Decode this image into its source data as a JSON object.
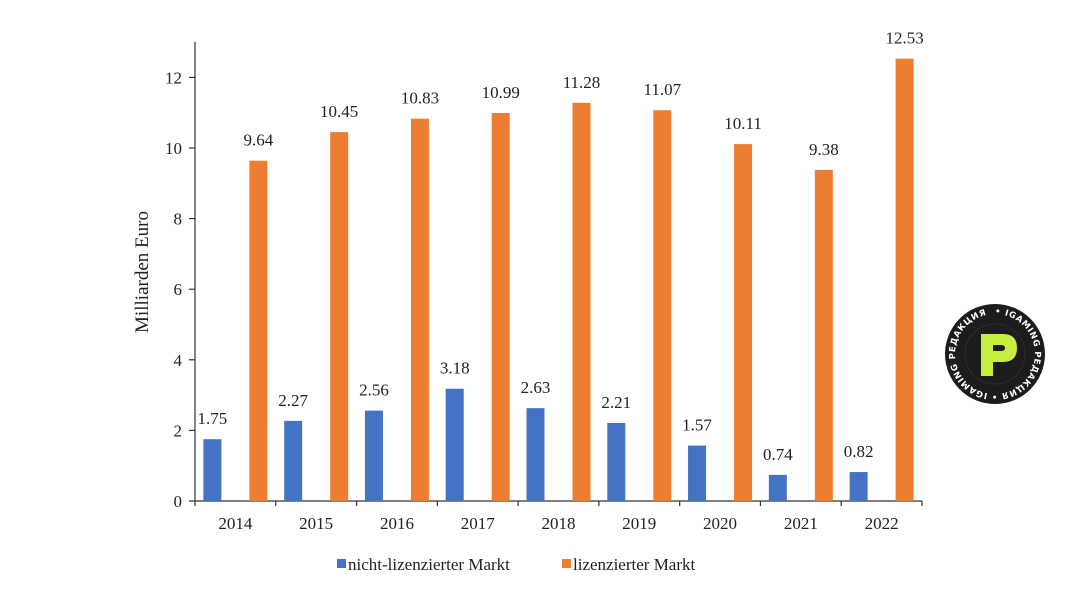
{
  "chart_data": {
    "type": "bar",
    "categories": [
      "2014",
      "2015",
      "2016",
      "2017",
      "2018",
      "2019",
      "2020",
      "2021",
      "2022"
    ],
    "series": [
      {
        "name": "nicht-lizenzierter Markt",
        "color": "#4472c4",
        "values": [
          1.75,
          2.27,
          2.56,
          3.18,
          2.63,
          2.21,
          1.57,
          0.74,
          0.82
        ],
        "labels": [
          "1.75",
          "2.27",
          "2.56",
          "3.18",
          "2.63",
          "2.21",
          "1.57",
          "0.74",
          "0.82"
        ]
      },
      {
        "name": "lizenzierter Markt",
        "color": "#ed7d31",
        "values": [
          9.64,
          10.45,
          10.83,
          10.99,
          11.28,
          11.07,
          10.11,
          9.38,
          12.53
        ],
        "labels": [
          "9.64",
          "10.45",
          "10.83",
          "10.99",
          "11.28",
          "11.07",
          "10.11",
          "9.38",
          "12.53"
        ]
      }
    ],
    "ylabel": "Milliarden Euro",
    "xlabel": "",
    "ylim": [
      0,
      13
    ],
    "yticks": [
      "0",
      "2",
      "4",
      "6",
      "8",
      "10",
      "12"
    ],
    "grid": false,
    "legend_position": "bottom"
  },
  "watermark": {
    "text": "IGAMING РЕДАКЦИЯ",
    "logo_letter": "P",
    "bg_color": "#1c1c1c",
    "accent_color": "#c5ee3e"
  }
}
